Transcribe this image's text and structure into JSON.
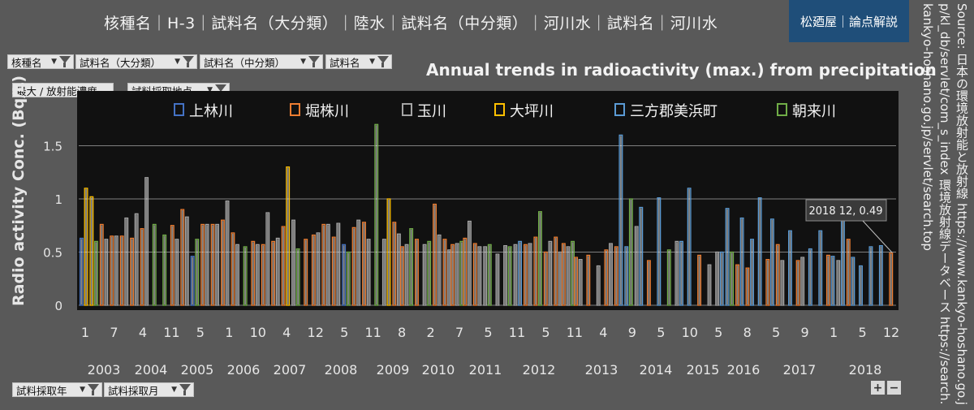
{
  "header": {
    "breadcrumb": "核種名｜H-3｜試料名（大分類）｜陸水｜試料名（中分類）｜河川水｜試料名｜河川水",
    "brand": "松廼屋｜論点解説",
    "source": "Source: 日本の環境放射能と放射線 https://www.kankyo-hoshano.go.jp/kl_db/servlet/com_s_index 環境放射線データベース https://search.kankyo-hoshano.go.jp/servlet/search.top"
  },
  "filters": {
    "nuclide": "核種名",
    "major_class": "試料名（大分類）",
    "mid_class": "試料名（中分類）",
    "sample_name": "試料名",
    "measure": "最大 / 放射能濃度",
    "location": "試料採取地点",
    "year": "試料採取年",
    "month": "試料採取月"
  },
  "zoom": {
    "plus": "+",
    "minus": "−"
  },
  "colors": {
    "上林川": "#4472c4",
    "堀株川": "#ed7d31",
    "玉川": "#a5a5a5",
    "大坪川": "#ffc000",
    "三方郡美浜町": "#5b9bd5",
    "朝来川": "#70ad47"
  },
  "chart_data": {
    "type": "bar",
    "title": "Annual trends in radioactivity (max.) from precipitation",
    "ylabel": "Radio activity Conc. (Bq/L)",
    "ylim": [
      0,
      1.8
    ],
    "yticks": [
      0,
      0.5,
      1,
      1.5
    ],
    "ytick_labels": [
      "0",
      "0.5",
      "1",
      "1.5"
    ],
    "grid": true,
    "legend_position": "top",
    "month_labels": [
      "1",
      "7",
      "4",
      "11",
      "5",
      "1",
      "10",
      "4",
      "12",
      "5",
      "11",
      "8",
      "2",
      "7",
      "5",
      "11",
      "5",
      "11",
      "4",
      "9",
      "5",
      "10",
      "5",
      "8",
      "5",
      "9",
      "1",
      "5",
      "12"
    ],
    "year_labels": [
      "2003",
      "2004",
      "2005",
      "2006",
      "2007",
      "2008",
      "2009",
      "2010",
      "2011",
      "2012",
      "2013",
      "2014",
      "2015",
      "2016",
      "2017",
      "2018"
    ],
    "annotation": "2018 12, 0.49",
    "series_names": [
      "上林川",
      "堀株川",
      "玉川",
      "大坪川",
      "三方郡美浜町",
      "朝来川"
    ],
    "groups": [
      [
        0.63,
        0,
        0,
        1.1,
        0,
        0
      ],
      [
        0,
        0,
        0,
        1.02,
        0,
        0.6
      ],
      [
        0,
        0.76,
        0.62,
        0,
        0,
        0
      ],
      [
        0,
        0.65,
        0.65,
        0,
        0,
        0
      ],
      [
        0,
        0.65,
        0.82,
        0,
        0,
        0
      ],
      [
        0,
        0.63,
        0.86,
        0,
        0,
        0
      ],
      [
        0,
        0.72,
        1.2,
        0,
        0,
        0
      ],
      [
        0,
        0,
        0,
        0,
        0,
        0.76
      ],
      [
        0,
        0,
        0,
        0,
        0,
        0.66
      ],
      [
        0,
        0.75,
        0.62,
        0,
        0,
        0
      ],
      [
        0,
        0.9,
        0.83,
        0,
        0,
        0
      ],
      [
        0.46,
        0,
        0,
        0,
        0,
        0.62
      ],
      [
        0,
        0.76,
        0.76,
        0,
        0,
        0
      ],
      [
        0,
        0.76,
        0.76,
        0,
        0,
        0
      ],
      [
        0,
        0.8,
        0.98,
        0,
        0,
        0
      ],
      [
        0,
        0.68,
        0.57,
        0,
        0,
        0
      ],
      [
        0,
        0,
        0,
        0,
        0,
        0.55
      ],
      [
        0,
        0.6,
        0.57,
        0,
        0,
        0
      ],
      [
        0,
        0.57,
        0.87,
        0,
        0,
        0
      ],
      [
        0,
        0.6,
        0.63,
        0,
        0,
        0
      ],
      [
        0,
        0.74,
        0,
        1.3,
        0,
        0
      ],
      [
        0,
        0,
        0.8,
        0,
        0,
        0.53
      ],
      [
        0,
        0.62,
        0,
        0,
        0,
        0
      ],
      [
        0,
        0.66,
        0.68,
        0,
        0,
        0
      ],
      [
        0,
        0.76,
        0.76,
        0,
        0,
        0
      ],
      [
        0,
        0.64,
        0.77,
        0,
        0,
        0
      ],
      [
        0.57,
        0,
        0,
        0,
        0,
        0.5
      ],
      [
        0,
        0.73,
        0.8,
        0,
        0,
        0
      ],
      [
        0,
        0.78,
        0.62,
        0,
        0,
        0
      ],
      [
        0,
        0,
        0,
        0,
        0,
        1.7
      ],
      [
        0,
        0,
        0.62,
        1.0,
        0,
        0
      ],
      [
        0,
        0.78,
        0.67,
        0,
        0,
        0
      ],
      [
        0,
        0.55,
        0.57,
        0,
        0,
        0.72
      ],
      [
        0,
        0.62,
        0,
        0,
        0,
        0
      ],
      [
        0,
        0,
        0.57,
        0,
        0,
        0.6
      ],
      [
        0,
        0.95,
        0.66,
        0,
        0,
        0
      ],
      [
        0,
        0.62,
        0.52,
        0,
        0,
        0
      ],
      [
        0,
        0.57,
        0.58,
        0,
        0,
        0.6
      ],
      [
        0,
        0.63,
        0.79,
        0,
        0,
        0
      ],
      [
        0,
        0.58,
        0.55,
        0,
        0,
        0
      ],
      [
        0,
        0,
        0.55,
        0,
        0,
        0.57
      ],
      [
        0,
        0,
        0.48,
        0,
        0,
        0
      ],
      [
        0,
        0,
        0.56,
        0,
        0,
        0.55
      ],
      [
        0,
        0,
        0.57,
        0,
        0.6,
        0
      ],
      [
        0,
        0.57,
        0.58,
        0,
        0,
        0
      ],
      [
        0,
        0.64,
        0,
        0,
        0,
        0.88
      ],
      [
        0,
        0.5,
        0.6,
        0,
        0,
        0
      ],
      [
        0,
        0.64,
        0.5,
        0,
        0,
        0
      ],
      [
        0,
        0.58,
        0.55,
        0,
        0,
        0.6
      ],
      [
        0,
        0.45,
        0.43,
        0,
        0,
        0
      ],
      [
        0,
        0.47,
        0,
        0,
        0,
        0
      ],
      [
        0,
        0,
        0.37,
        0,
        0,
        0
      ],
      [
        0,
        0.52,
        0.58,
        0,
        0,
        0
      ],
      [
        0,
        0.55,
        0,
        0,
        1.6,
        0
      ],
      [
        0,
        0,
        0,
        0,
        0.55,
        1.0
      ],
      [
        0,
        0,
        0.74,
        0,
        0.92,
        0
      ],
      [
        0,
        0.42,
        0,
        0,
        0,
        0
      ],
      [
        0,
        0,
        0,
        0,
        1.01,
        0
      ],
      [
        0,
        0,
        0,
        0,
        0,
        0.52
      ],
      [
        0,
        0,
        0.6,
        0,
        0.6,
        0
      ],
      [
        0,
        0,
        0,
        0,
        1.1,
        0
      ],
      [
        0,
        0.47,
        0,
        0,
        0,
        0
      ],
      [
        0,
        0,
        0.38,
        0,
        0,
        0
      ],
      [
        0,
        0,
        0.5,
        0,
        0.5,
        0
      ],
      [
        0,
        0,
        0,
        0,
        0.91,
        0.5
      ],
      [
        0,
        0.38,
        0,
        0,
        0.82,
        0
      ],
      [
        0,
        0.35,
        0,
        0,
        0.62,
        0
      ],
      [
        0,
        0,
        0,
        0,
        1.01,
        0
      ],
      [
        0,
        0.43,
        0,
        0,
        0.81,
        0
      ],
      [
        0,
        0.57,
        0.42,
        0,
        0,
        0
      ],
      [
        0,
        0,
        0,
        0,
        0.7,
        0
      ],
      [
        0,
        0.42,
        0.45,
        0,
        0,
        0
      ],
      [
        0,
        0,
        0,
        0,
        0.53,
        0
      ],
      [
        0,
        0,
        0,
        0,
        0.7,
        0
      ],
      [
        0,
        0.47,
        0,
        0,
        0.46,
        0
      ],
      [
        0,
        0,
        0.42,
        0,
        0.8,
        0
      ],
      [
        0,
        0.62,
        0,
        0,
        0.45,
        0
      ],
      [
        0,
        0,
        0,
        0,
        0.37,
        0
      ],
      [
        0,
        0,
        0,
        0,
        0.55,
        0
      ],
      [
        0,
        0,
        0,
        0,
        0.56,
        0
      ],
      [
        0,
        0.49,
        0,
        0,
        0,
        0
      ]
    ]
  }
}
